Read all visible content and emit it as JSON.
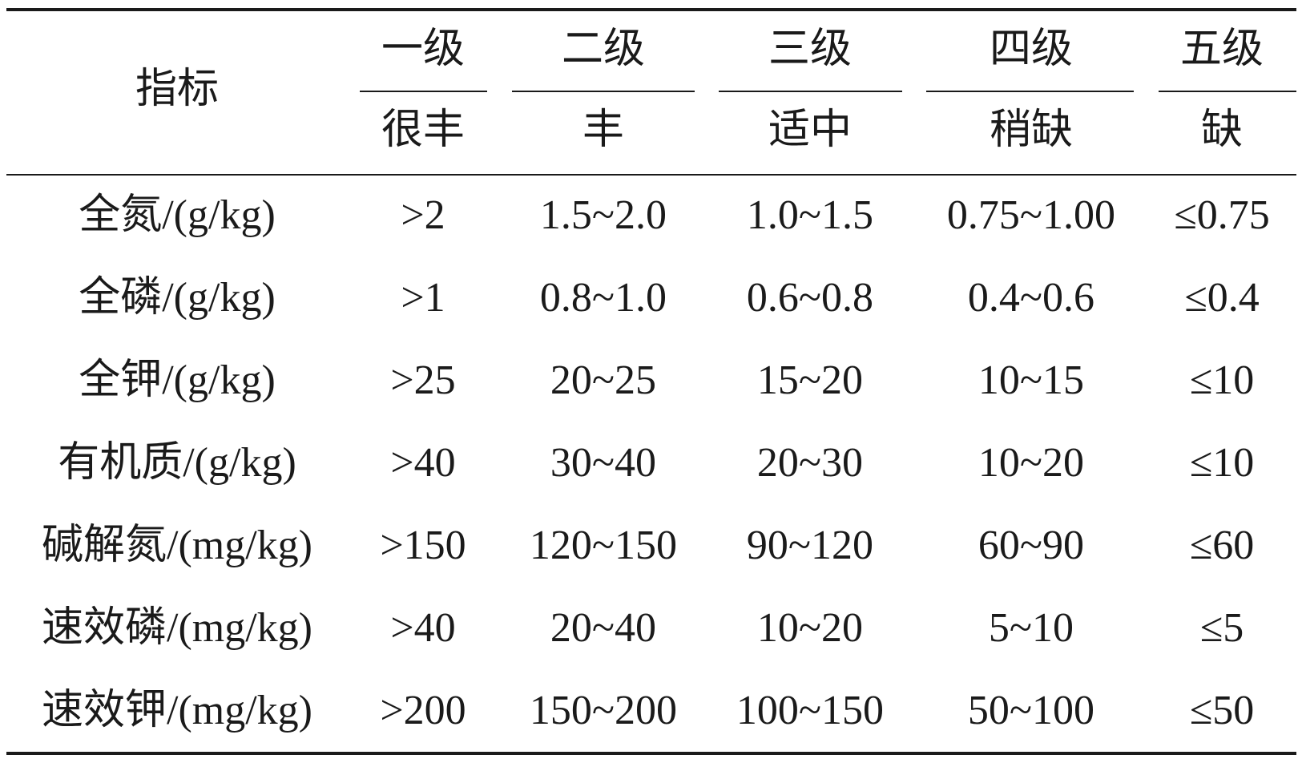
{
  "table": {
    "corner": "指标",
    "levels": [
      "一级",
      "二级",
      "三级",
      "四级",
      "五级"
    ],
    "descriptions": [
      "很丰",
      "丰",
      "适中",
      "稍缺",
      "缺"
    ],
    "rows": [
      [
        "全氮/(g/kg)",
        ">2",
        "1.5~2.0",
        "1.0~1.5",
        "0.75~1.00",
        "≤0.75"
      ],
      [
        "全磷/(g/kg)",
        ">1",
        "0.8~1.0",
        "0.6~0.8",
        "0.4~0.6",
        "≤0.4"
      ],
      [
        "全钾/(g/kg)",
        ">25",
        "20~25",
        "15~20",
        "10~15",
        "≤10"
      ],
      [
        "有机质/(g/kg)",
        ">40",
        "30~40",
        "20~30",
        "10~20",
        "≤10"
      ],
      [
        "碱解氮/(mg/kg)",
        ">150",
        "120~150",
        "90~120",
        "60~90",
        "≤60"
      ],
      [
        "速效磷/(mg/kg)",
        ">40",
        "20~40",
        "10~20",
        "5~10",
        "≤5"
      ],
      [
        "速效钾/(mg/kg)",
        ">200",
        "150~200",
        "100~150",
        "50~100",
        "≤50"
      ]
    ]
  }
}
